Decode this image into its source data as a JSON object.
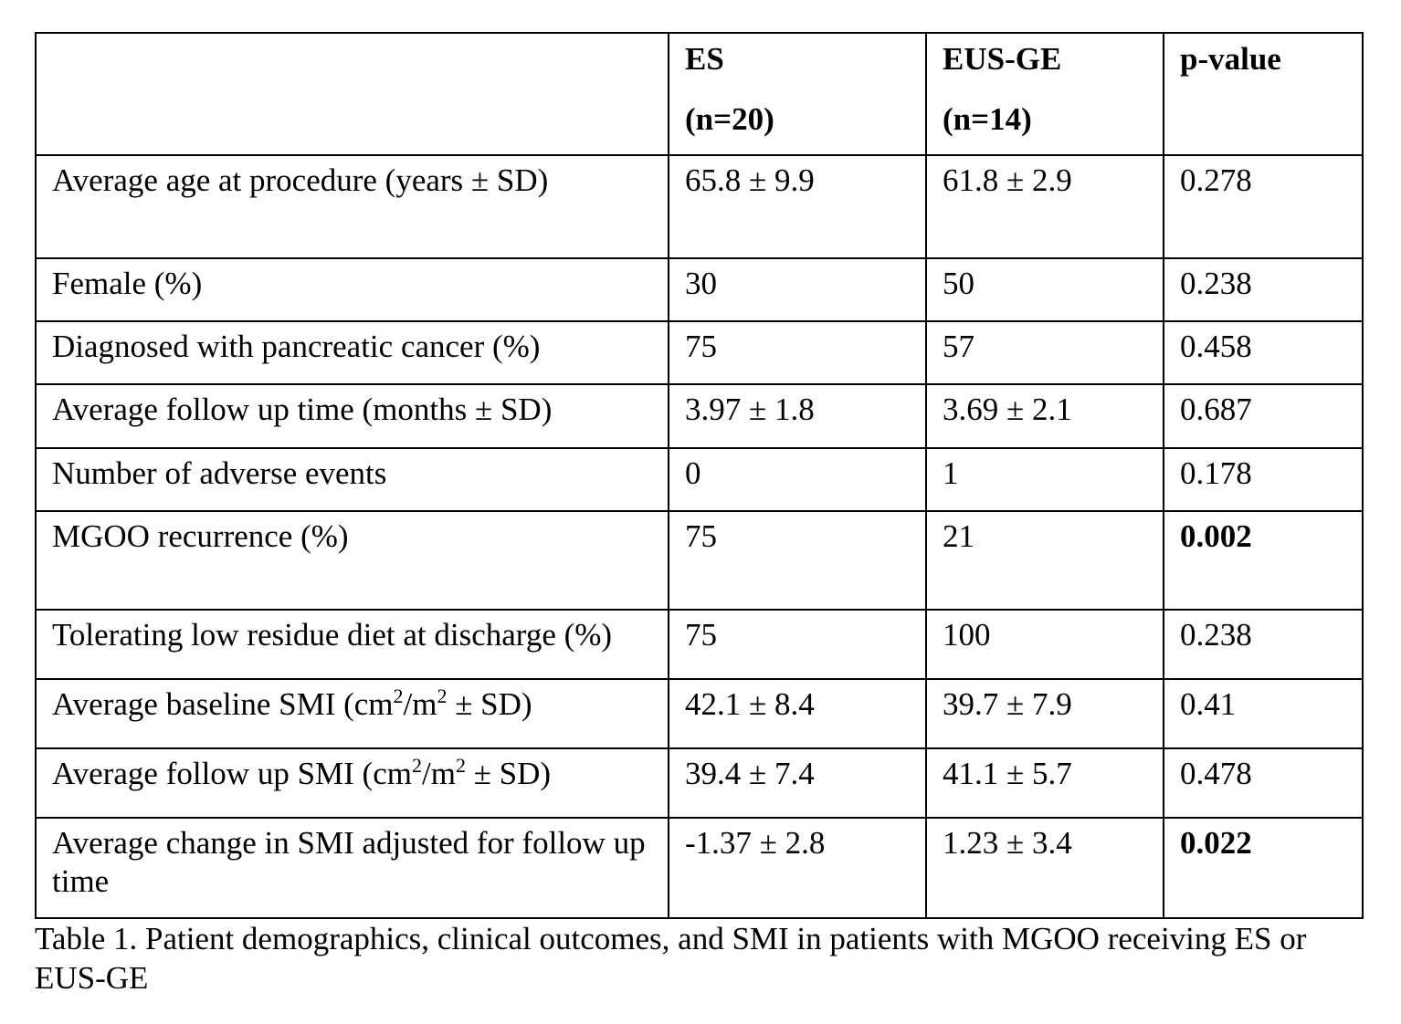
{
  "table": {
    "headers": [
      {
        "line1": "",
        "line2": ""
      },
      {
        "line1": "ES",
        "line2": "(n=20)"
      },
      {
        "line1": "EUS-GE",
        "line2": "(n=14)"
      },
      {
        "line1": "p-value",
        "line2": ""
      }
    ],
    "rows": [
      {
        "label": "Average age at procedure (years ± SD)",
        "es": "65.8 ± 9.9",
        "eus": "61.8 ± 2.9",
        "p": "0.278",
        "p_bold": false
      },
      {
        "label": "Female (%)",
        "es": "30",
        "eus": "50",
        "p": "0.238",
        "p_bold": false
      },
      {
        "label": "Diagnosed with pancreatic cancer (%)",
        "es": "75",
        "eus": "57",
        "p": "0.458",
        "p_bold": false
      },
      {
        "label": "Average follow up time (months ± SD)",
        "es": "3.97 ± 1.8",
        "eus": "3.69 ± 2.1",
        "p": "0.687",
        "p_bold": false
      },
      {
        "label": "Number of adverse events",
        "es": "0",
        "eus": "1",
        "p": "0.178",
        "p_bold": false
      },
      {
        "label": "MGOO recurrence (%)",
        "es": "75",
        "eus": "21",
        "p": "0.002",
        "p_bold": true
      },
      {
        "label": "Tolerating low residue diet at discharge (%)",
        "es": "75",
        "eus": "100",
        "p": "0.238",
        "p_bold": false
      },
      {
        "label_pre": "Average baseline SMI (cm",
        "label_sup1": "2",
        "label_mid": "/m",
        "label_sup2": "2",
        "label_post": " ± SD)",
        "es": "42.1 ± 8.4",
        "eus": "39.7 ± 7.9",
        "p": "0.41",
        "p_bold": false
      },
      {
        "label_pre": "Average follow up SMI (cm",
        "label_sup1": "2",
        "label_mid": "/m",
        "label_sup2": "2",
        "label_post": " ± SD)",
        "es": "39.4 ± 7.4",
        "eus": "41.1 ± 5.7",
        "p": "0.478",
        "p_bold": false
      },
      {
        "label": "Average change in SMI adjusted for follow up time",
        "es": "-1.37 ± 2.8",
        "eus": "1.23 ± 3.4",
        "p": "0.022",
        "p_bold": true
      }
    ]
  },
  "caption": "Table 1. Patient demographics, clinical outcomes, and SMI in patients with MGOO receiving ES or EUS-GE"
}
